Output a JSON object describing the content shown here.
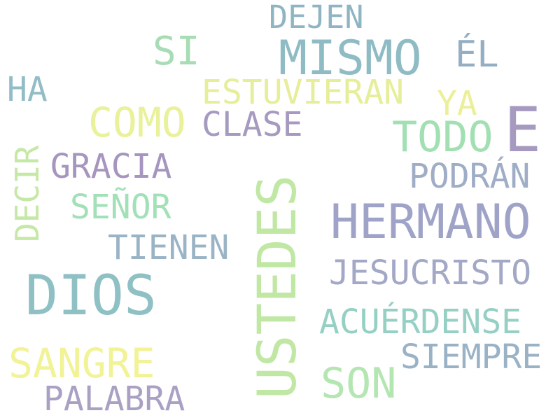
{
  "words": {
    "dejen": {
      "text": "DEJEN",
      "color": "#8fb5c3"
    },
    "mismo": {
      "text": "MISMO",
      "color": "#8fbcc4"
    },
    "si": {
      "text": "SI",
      "color": "#a7dcb4"
    },
    "el": {
      "text": "ÉL",
      "color": "#94aec4"
    },
    "ha": {
      "text": "HA",
      "color": "#92bcc6"
    },
    "estuvieran": {
      "text": "ESTUVIERAN",
      "color": "#e6ee9a"
    },
    "ya": {
      "text": "YA",
      "color": "#ecef9a"
    },
    "como": {
      "text": "COMO",
      "color": "#e9f19a"
    },
    "clase": {
      "text": "CLASE",
      "color": "#a69ac0"
    },
    "e": {
      "text": "E",
      "color": "#a79ac0"
    },
    "todo": {
      "text": "TODO",
      "color": "#a2e0b4"
    },
    "decir": {
      "text": "DECIR",
      "color": "#c6e8a6"
    },
    "gracia": {
      "text": "GRACIA",
      "color": "#a695be"
    },
    "podran": {
      "text": "PODRÁN",
      "color": "#9fadc6"
    },
    "ustedes": {
      "text": "USTEDES",
      "color": "#c0e8a4"
    },
    "senor": {
      "text": "SEÑOR",
      "color": "#a2e0b8"
    },
    "hermano": {
      "text": "HERMANO",
      "color": "#9fa3c8"
    },
    "tienen": {
      "text": "TIENEN",
      "color": "#9ab4c6"
    },
    "jesucristo": {
      "text": "JESUCRISTO",
      "color": "#a2a8c6"
    },
    "dios": {
      "text": "DIOS",
      "color": "#8fc0c4"
    },
    "acuerdense": {
      "text": "ACUÉRDENSE",
      "color": "#96d0c4"
    },
    "sangre": {
      "text": "SANGRE",
      "color": "#f2f296"
    },
    "son": {
      "text": "SON",
      "color": "#b4e6b2"
    },
    "siempre": {
      "text": "SIEMPRE",
      "color": "#9ab2c6"
    },
    "palabra": {
      "text": "PALABRA",
      "color": "#aaa0c4"
    }
  }
}
